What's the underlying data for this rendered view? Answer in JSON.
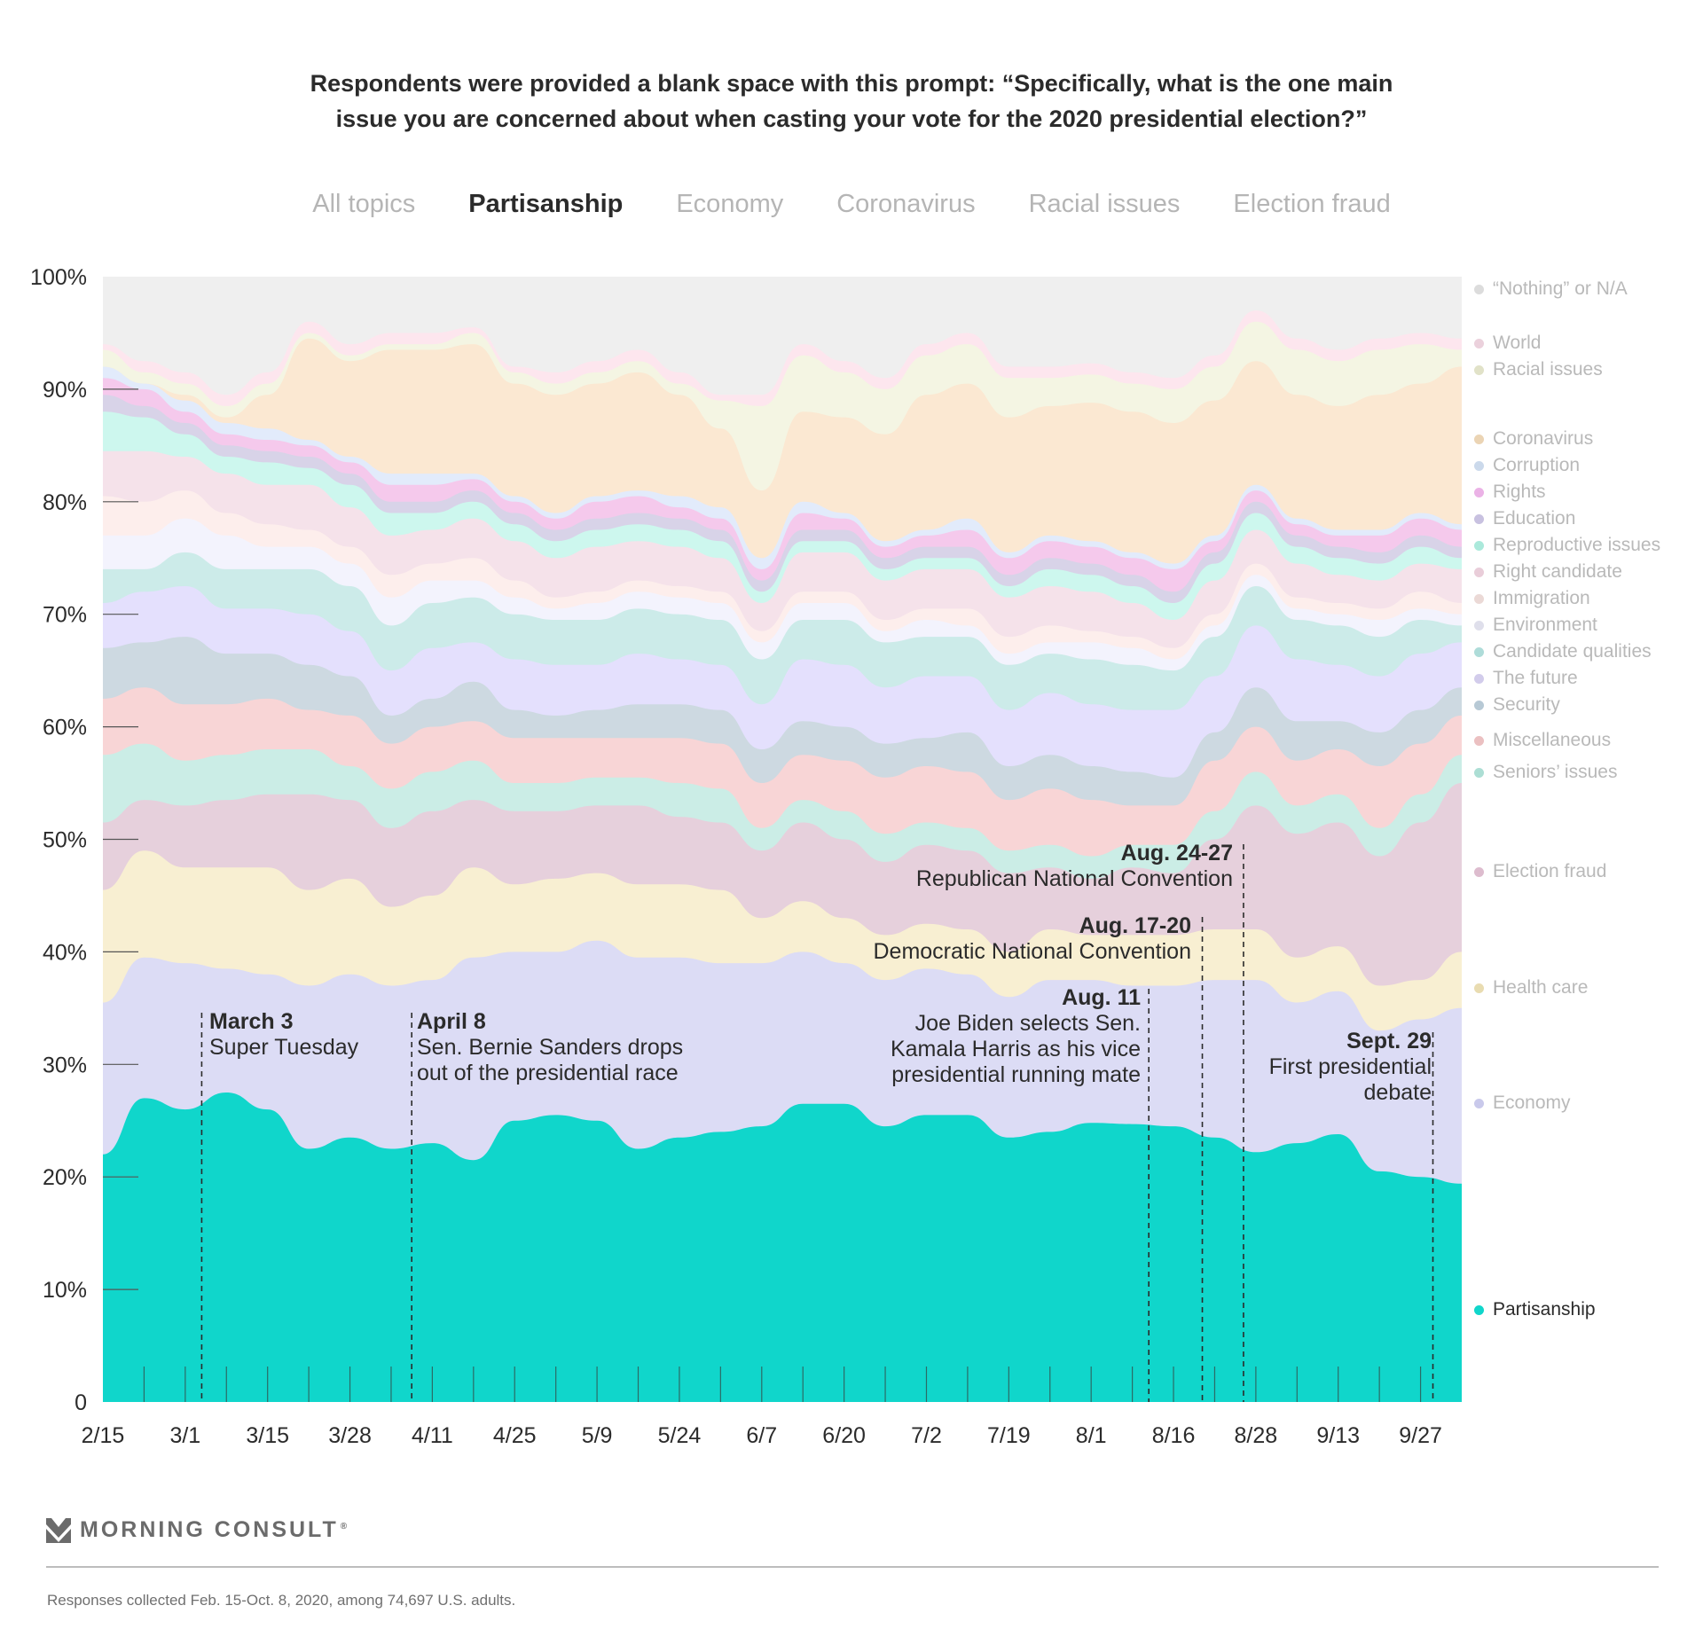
{
  "title_lines": [
    "Respondents were provided a blank space with this prompt: “Specifically, what is the one main",
    "issue you are concerned about when casting your vote for the 2020 presidential election?”"
  ],
  "tabs": [
    {
      "label": "All topics",
      "active": false
    },
    {
      "label": "Partisanship",
      "active": true
    },
    {
      "label": "Economy",
      "active": false
    },
    {
      "label": "Coronavirus",
      "active": false
    },
    {
      "label": "Racial issues",
      "active": false
    },
    {
      "label": "Election fraud",
      "active": false
    }
  ],
  "annotations": [
    {
      "date": "March 3",
      "text": [
        "Super Tuesday"
      ]
    },
    {
      "date": "April 8",
      "text": [
        "Sen. Bernie Sanders drops",
        "out of the presidential race"
      ]
    },
    {
      "date": "Aug. 11",
      "text": [
        "Joe Biden selects Sen.",
        "Kamala Harris as his vice",
        "presidential running mate"
      ]
    },
    {
      "date": "Aug. 17-20",
      "text": [
        "Democratic National Convention"
      ]
    },
    {
      "date": "Aug. 24-27",
      "text": [
        "Republican National Convention"
      ]
    },
    {
      "date": "Sept. 29",
      "text": [
        "First presidential",
        "debate"
      ]
    }
  ],
  "brand": {
    "name": "MORNING CONSULT",
    "reg": "®"
  },
  "footnote": "Responses collected Feb. 15-Oct. 8, 2020, among 74,697 U.S. adults.",
  "chart_data": {
    "type": "area",
    "stacked": true,
    "highlighted_series": "Partisanship",
    "ylim": [
      0,
      100
    ],
    "ytick_labels": [
      "0",
      "10%",
      "20%",
      "30%",
      "40%",
      "50%",
      "60%",
      "70%",
      "80%",
      "90%",
      "100%"
    ],
    "xtick_labels": [
      "2/15",
      "3/1",
      "3/15",
      "3/28",
      "4/11",
      "4/25",
      "5/9",
      "5/24",
      "6/7",
      "6/20",
      "7/2",
      "7/19",
      "8/1",
      "8/16",
      "8/28",
      "9/13",
      "9/27"
    ],
    "n_points": 34,
    "x": [
      "2/15",
      "2/22",
      "3/1",
      "3/8",
      "3/15",
      "3/21",
      "3/28",
      "4/4",
      "4/11",
      "4/18",
      "4/25",
      "5/2",
      "5/9",
      "5/16",
      "5/24",
      "5/31",
      "6/7",
      "6/13",
      "6/20",
      "6/27",
      "7/2",
      "7/11",
      "7/19",
      "7/26",
      "8/1",
      "8/8",
      "8/16",
      "8/22",
      "8/28",
      "9/5",
      "9/13",
      "9/20",
      "9/27",
      "10/4"
    ],
    "event_markers": [
      {
        "label": "March 3",
        "x_index": 2.4
      },
      {
        "label": "April 8",
        "x_index": 7.5
      },
      {
        "label": "Aug. 11",
        "x_index": 25.4
      },
      {
        "label": "Aug. 17-20",
        "x_index": 26.7
      },
      {
        "label": "Aug. 24-27",
        "x_index": 27.7
      },
      {
        "label": "Sept. 29",
        "x_index": 32.3
      }
    ],
    "series": [
      {
        "name": "Partisanship",
        "color": "#10d6cb",
        "values": [
          22,
          27,
          26,
          27.5,
          26,
          22.5,
          23.5,
          22.5,
          23,
          21.5,
          25,
          25.5,
          25,
          22.5,
          23.5,
          24,
          24.5,
          26.5,
          26.5,
          24.5,
          25.5,
          25.5,
          23.5,
          24,
          24.8,
          24.7,
          24.5,
          23.5,
          22.2,
          23,
          23.8,
          20.5,
          20,
          19.4
        ]
      },
      {
        "name": "Economy",
        "color": "#dcdcf5",
        "values": [
          13.5,
          12.5,
          13,
          11,
          12,
          14.5,
          14.5,
          14.5,
          14.5,
          18,
          15,
          14.5,
          16,
          17,
          16,
          15,
          14.5,
          13.5,
          12.5,
          13,
          13,
          12.5,
          12.5,
          13.5,
          12.7,
          12.3,
          12.5,
          14,
          15.3,
          12.5,
          12.7,
          12.5,
          14,
          15.6
        ]
      },
      {
        "name": "Health care",
        "color": "#f8efd2",
        "values": [
          10,
          9.5,
          8.5,
          9,
          9.5,
          8.5,
          8.5,
          7,
          7.5,
          8,
          6,
          6.5,
          6,
          6.5,
          6.5,
          6.5,
          4,
          4.5,
          4,
          4,
          4,
          4,
          4,
          4.5,
          4,
          4.5,
          4.5,
          4.5,
          4.5,
          4,
          4,
          4,
          3.5,
          5
        ]
      },
      {
        "name": "Election fraud",
        "color": "#e6d0dc",
        "values": [
          6,
          4.5,
          5.5,
          6,
          6.5,
          8.5,
          7,
          7,
          7.5,
          6,
          6.5,
          6,
          6,
          7,
          6,
          6,
          6,
          7,
          7,
          6.5,
          7,
          7,
          7,
          5.5,
          5,
          6,
          5.5,
          8,
          11,
          11,
          11,
          11.5,
          14,
          15
        ]
      },
      {
        "name": "Seniors’ issues",
        "color": "#cbede6",
        "values": [
          6,
          5,
          4,
          4,
          4,
          4,
          3,
          3.5,
          3.5,
          3.5,
          2.5,
          2.5,
          2.5,
          2.5,
          3,
          3,
          2,
          2,
          2.5,
          2.5,
          2,
          2,
          2,
          2,
          2,
          2,
          2.5,
          2.5,
          3,
          2.5,
          2.5,
          2.5,
          2.5,
          2.5
        ]
      },
      {
        "name": "Miscellaneous",
        "color": "#f8d5d6",
        "values": [
          5,
          5,
          5,
          4.5,
          4.5,
          3.5,
          4.5,
          4,
          4,
          3.5,
          4,
          4,
          3.5,
          3.5,
          4,
          4,
          4,
          4,
          4.5,
          5,
          5,
          5,
          4.5,
          5,
          5,
          3.5,
          3.5,
          4.5,
          4,
          4,
          4,
          5.5,
          4.5,
          3.5
        ]
      },
      {
        "name": "Security",
        "color": "#cdd9e1",
        "values": [
          4.5,
          4,
          6,
          4.5,
          4,
          4,
          3.5,
          2.5,
          2.5,
          3.5,
          2.5,
          2,
          2.5,
          3,
          3,
          3,
          3,
          3,
          3,
          3,
          2.5,
          3.5,
          3,
          3,
          3,
          3,
          2.5,
          2.5,
          3.5,
          3.5,
          2.5,
          3,
          3,
          2.5
        ]
      },
      {
        "name": "The future",
        "color": "#e4e0fd",
        "values": [
          4,
          4.5,
          4.5,
          4,
          4,
          4.5,
          4,
          4,
          4.5,
          3.5,
          4.5,
          4.5,
          4,
          4.5,
          4,
          4,
          4,
          5.5,
          5.5,
          5,
          5.5,
          5,
          5,
          5.5,
          5.5,
          5.5,
          6,
          5,
          5.5,
          5.5,
          5,
          5,
          5,
          4
        ]
      },
      {
        "name": "Candidate qualities",
        "color": "#ccebe9",
        "values": [
          3,
          2,
          3,
          3.5,
          3.5,
          4,
          4,
          4,
          4,
          4,
          4,
          4,
          4,
          4,
          4,
          4,
          4,
          3.5,
          4,
          4,
          3.5,
          3.5,
          4,
          3.5,
          4,
          4,
          3.5,
          3.5,
          3.5,
          3.5,
          3.5,
          3.5,
          3,
          1.5
        ]
      },
      {
        "name": "Environment",
        "color": "#f3f3fd",
        "values": [
          3,
          3,
          3,
          3,
          2,
          2,
          2,
          2.5,
          2,
          1.5,
          1.5,
          1,
          1.5,
          1.5,
          1.5,
          1.5,
          1.5,
          1.5,
          1.5,
          1,
          1.5,
          1,
          1,
          1,
          1.5,
          1.5,
          1,
          1,
          1,
          1,
          1,
          1.5,
          1,
          1
        ]
      },
      {
        "name": "Immigration",
        "color": "#fdeeec",
        "values": [
          3.5,
          3,
          2.5,
          2,
          2,
          1.5,
          1.5,
          2,
          1.5,
          2,
          1.5,
          1,
          1,
          1,
          1,
          1,
          1,
          1,
          1,
          1,
          1,
          1.5,
          1.5,
          1.5,
          1,
          1,
          1,
          1,
          1,
          1,
          1,
          1,
          1.5,
          1
        ]
      },
      {
        "name": "Right candidate",
        "color": "#f5e2ea",
        "values": [
          4,
          4.5,
          3,
          3.5,
          3.5,
          4,
          3.5,
          3.5,
          3,
          3.5,
          3.5,
          3.5,
          4,
          3.5,
          3.5,
          3,
          2.5,
          3.5,
          3.5,
          3.5,
          3.5,
          3.5,
          3.5,
          3.5,
          3.5,
          3,
          2.5,
          3,
          3,
          3,
          2.5,
          2.5,
          2.5,
          3
        ]
      },
      {
        "name": "Reproductive issues",
        "color": "#cdf7ee",
        "values": [
          3.5,
          3,
          2,
          1.5,
          2,
          1.5,
          2,
          2,
          1.5,
          1.5,
          1.5,
          1.5,
          1.5,
          1.5,
          1.5,
          1.5,
          1,
          1,
          1,
          1,
          1,
          1,
          1,
          1.5,
          1.5,
          1.5,
          1.5,
          1.5,
          1.5,
          1.5,
          1.5,
          1.5,
          1.5,
          1
        ]
      },
      {
        "name": "Education",
        "color": "#d8d3e8",
        "values": [
          1.5,
          1,
          1,
          1,
          1,
          1,
          1,
          1,
          1,
          1,
          1,
          1,
          1,
          1,
          1,
          1,
          1,
          1,
          1,
          1,
          1,
          1,
          1,
          1,
          1,
          1,
          1,
          1,
          1,
          1,
          1,
          1,
          1,
          1
        ]
      },
      {
        "name": "Rights",
        "color": "#f5c9ec",
        "values": [
          1.5,
          1.5,
          1,
          1,
          1,
          1,
          1,
          1.5,
          1.5,
          1,
          1,
          1,
          1.5,
          1.5,
          1,
          1,
          1,
          1.5,
          1,
          1,
          1,
          1.5,
          1.5,
          1.5,
          1.5,
          1.5,
          2,
          1,
          1,
          1,
          1,
          1.5,
          1.5,
          1.5
        ]
      },
      {
        "name": "Corruption",
        "color": "#e2ebfb",
        "values": [
          1,
          0.5,
          1,
          1,
          1,
          0.5,
          0.5,
          1,
          1,
          0.5,
          0.5,
          0.5,
          0.5,
          0.5,
          1,
          1,
          1,
          1,
          0.5,
          0.5,
          0.5,
          1,
          0.5,
          0.5,
          0.5,
          0.5,
          0.5,
          0.5,
          0.5,
          0.5,
          0.5,
          0.5,
          0.5,
          0.5
        ]
      },
      {
        "name": "Coronavirus",
        "color": "#fbe8d2",
        "values": [
          0,
          0,
          0.5,
          0.5,
          3,
          9,
          8.5,
          11,
          11,
          11.5,
          10,
          10.5,
          10,
          10.5,
          9,
          7,
          6,
          8,
          8.5,
          9.5,
          12,
          12,
          12,
          11.5,
          12.3,
          12.5,
          12.5,
          12,
          11,
          11,
          11,
          12,
          11.5,
          14
        ]
      },
      {
        "name": "Racial issues",
        "color": "#f4f5e3",
        "values": [
          1.5,
          1,
          1,
          1,
          1,
          0.5,
          0.5,
          0.5,
          0.5,
          1,
          1,
          1,
          1,
          1,
          1,
          2.5,
          7.5,
          5,
          4,
          4,
          3.5,
          3.5,
          3.5,
          2.5,
          2.5,
          2.5,
          3,
          3,
          3.5,
          4,
          4,
          4,
          3.5,
          1.5
        ]
      },
      {
        "name": "World",
        "color": "#fde6ee",
        "values": [
          0.5,
          1,
          1,
          1,
          1,
          1,
          1,
          1,
          1,
          0.5,
          0.5,
          1,
          1,
          1,
          1,
          0.5,
          1,
          1,
          1,
          1,
          1,
          1,
          1,
          1,
          1,
          1,
          1,
          1,
          1,
          1,
          1,
          1,
          1,
          1
        ]
      },
      {
        "name": "“Nothing” or N/A",
        "color": "#efefef",
        "values": null,
        "note": "remainder to 100%"
      }
    ]
  }
}
